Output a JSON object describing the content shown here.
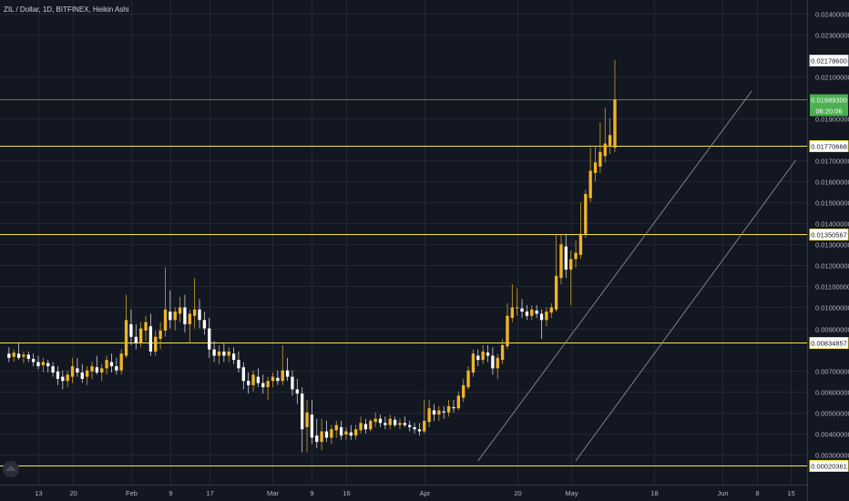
{
  "chart_data": {
    "type": "candlestick",
    "title": "ZIL / Dollar, 1D, BITFINEX, Heikin Ashi",
    "ylim": [
      0.002,
      0.0245
    ],
    "y_ticks": [
      "0.02400000",
      "0.02300000",
      "0.02100000",
      "0.01900000",
      "0.01700000",
      "0.01600000",
      "0.01500000",
      "0.01400000",
      "0.01300000",
      "0.01200000",
      "0.01100000",
      "0.01000000",
      "0.00900000",
      "0.00700000",
      "0.00600000",
      "0.00500000",
      "0.00400000",
      "0.00300000"
    ],
    "x_ticks": [
      {
        "label": "13",
        "day": 0
      },
      {
        "label": "20",
        "day": 7
      },
      {
        "label": "Feb",
        "day": 19
      },
      {
        "label": "9",
        "day": 27
      },
      {
        "label": "17",
        "day": 35
      },
      {
        "label": "Mar",
        "day": 48
      },
      {
        "label": "9",
        "day": 56
      },
      {
        "label": "16",
        "day": 63
      },
      {
        "label": "Apr",
        "day": 79
      },
      {
        "label": "20",
        "day": 98
      },
      {
        "label": "May",
        "day": 109
      },
      {
        "label": "18",
        "day": 126
      },
      {
        "label": "Jun",
        "day": 140
      },
      {
        "label": "8",
        "day": 147
      },
      {
        "label": "15",
        "day": 154
      }
    ],
    "horizontal_levels": [
      {
        "value": 0.00834857,
        "label": "0.00834857",
        "color": "#f5e642"
      },
      {
        "value": 0.01350567,
        "label": "0.01350567",
        "color": "#f5e642"
      },
      {
        "value": 0.01770668,
        "label": "0.01770668",
        "color": "#f5e642"
      },
      {
        "value": 0.00020361,
        "label": "0.00020361",
        "color": "#f5e642"
      }
    ],
    "current_price": {
      "value": 0.019893,
      "label": "0.01989300",
      "countdown": "06:20:06",
      "color": "#4caf50"
    },
    "high_marker": {
      "value": 0.021786,
      "label": "0.02178600"
    },
    "trend_lines": [
      {
        "from": {
          "day": 90,
          "price": 0.0027
        },
        "to": {
          "day": 146,
          "price": 0.0203
        }
      },
      {
        "from": {
          "day": 110,
          "price": 0.0027
        },
        "to": {
          "day": 155,
          "price": 0.017
        }
      }
    ],
    "colors": {
      "up": "#f0b429",
      "down": "#ffffff",
      "wick": "#c9a227",
      "level": "#f5e642",
      "trend": "#9598a1"
    },
    "candles": [
      {
        "day": -6,
        "o": 0.0078,
        "h": 0.0081,
        "l": 0.0074,
        "c": 0.0076
      },
      {
        "day": -5,
        "o": 0.00765,
        "h": 0.008,
        "l": 0.0074,
        "c": 0.00785
      },
      {
        "day": -4,
        "o": 0.0078,
        "h": 0.0083,
        "l": 0.0075,
        "c": 0.0076
      },
      {
        "day": -3,
        "o": 0.00765,
        "h": 0.0079,
        "l": 0.00735,
        "c": 0.00775
      },
      {
        "day": -2,
        "o": 0.00775,
        "h": 0.0079,
        "l": 0.0074,
        "c": 0.00755
      },
      {
        "day": -1,
        "o": 0.00755,
        "h": 0.0078,
        "l": 0.0072,
        "c": 0.0074
      },
      {
        "day": 0,
        "o": 0.0074,
        "h": 0.0077,
        "l": 0.00705,
        "c": 0.0072
      },
      {
        "day": 1,
        "o": 0.00725,
        "h": 0.0076,
        "l": 0.0069,
        "c": 0.0074
      },
      {
        "day": 2,
        "o": 0.00735,
        "h": 0.0075,
        "l": 0.0069,
        "c": 0.0072
      },
      {
        "day": 3,
        "o": 0.0072,
        "h": 0.0074,
        "l": 0.0067,
        "c": 0.0069
      },
      {
        "day": 4,
        "o": 0.00695,
        "h": 0.0072,
        "l": 0.0063,
        "c": 0.0066
      },
      {
        "day": 5,
        "o": 0.0067,
        "h": 0.007,
        "l": 0.0061,
        "c": 0.0065
      },
      {
        "day": 6,
        "o": 0.0065,
        "h": 0.007,
        "l": 0.0062,
        "c": 0.0068
      },
      {
        "day": 7,
        "o": 0.0067,
        "h": 0.0076,
        "l": 0.0064,
        "c": 0.0072
      },
      {
        "day": 8,
        "o": 0.0071,
        "h": 0.0076,
        "l": 0.0067,
        "c": 0.0069
      },
      {
        "day": 9,
        "o": 0.0069,
        "h": 0.0073,
        "l": 0.0064,
        "c": 0.0066
      },
      {
        "day": 10,
        "o": 0.0067,
        "h": 0.0072,
        "l": 0.0063,
        "c": 0.007
      },
      {
        "day": 11,
        "o": 0.00695,
        "h": 0.0074,
        "l": 0.0066,
        "c": 0.0072
      },
      {
        "day": 12,
        "o": 0.00715,
        "h": 0.0077,
        "l": 0.0068,
        "c": 0.0069
      },
      {
        "day": 13,
        "o": 0.0069,
        "h": 0.0073,
        "l": 0.0065,
        "c": 0.0071
      },
      {
        "day": 14,
        "o": 0.0071,
        "h": 0.0077,
        "l": 0.0068,
        "c": 0.0075
      },
      {
        "day": 15,
        "o": 0.0074,
        "h": 0.0078,
        "l": 0.0069,
        "c": 0.0072
      },
      {
        "day": 16,
        "o": 0.0072,
        "h": 0.0076,
        "l": 0.0068,
        "c": 0.007
      },
      {
        "day": 17,
        "o": 0.007,
        "h": 0.008,
        "l": 0.0068,
        "c": 0.0078
      },
      {
        "day": 18,
        "o": 0.0077,
        "h": 0.0106,
        "l": 0.0076,
        "c": 0.0094
      },
      {
        "day": 19,
        "o": 0.0092,
        "h": 0.0099,
        "l": 0.0082,
        "c": 0.0086
      },
      {
        "day": 20,
        "o": 0.0086,
        "h": 0.0092,
        "l": 0.008,
        "c": 0.0083
      },
      {
        "day": 21,
        "o": 0.0083,
        "h": 0.0093,
        "l": 0.0081,
        "c": 0.009
      },
      {
        "day": 22,
        "o": 0.0089,
        "h": 0.0096,
        "l": 0.0084,
        "c": 0.0093
      },
      {
        "day": 23,
        "o": 0.0091,
        "h": 0.0097,
        "l": 0.0077,
        "c": 0.0079
      },
      {
        "day": 24,
        "o": 0.0079,
        "h": 0.0089,
        "l": 0.0077,
        "c": 0.0086
      },
      {
        "day": 25,
        "o": 0.0085,
        "h": 0.0093,
        "l": 0.008,
        "c": 0.0089
      },
      {
        "day": 26,
        "o": 0.0089,
        "h": 0.0119,
        "l": 0.0086,
        "c": 0.0099
      },
      {
        "day": 27,
        "o": 0.0098,
        "h": 0.0108,
        "l": 0.009,
        "c": 0.0094
      },
      {
        "day": 28,
        "o": 0.0094,
        "h": 0.01,
        "l": 0.0089,
        "c": 0.0098
      },
      {
        "day": 29,
        "o": 0.0097,
        "h": 0.0105,
        "l": 0.0093,
        "c": 0.01
      },
      {
        "day": 30,
        "o": 0.01,
        "h": 0.0106,
        "l": 0.0088,
        "c": 0.0092
      },
      {
        "day": 31,
        "o": 0.0092,
        "h": 0.0099,
        "l": 0.0083,
        "c": 0.0097
      },
      {
        "day": 32,
        "o": 0.0096,
        "h": 0.0114,
        "l": 0.009,
        "c": 0.0099
      },
      {
        "day": 33,
        "o": 0.0099,
        "h": 0.0104,
        "l": 0.009,
        "c": 0.0094
      },
      {
        "day": 34,
        "o": 0.0094,
        "h": 0.0098,
        "l": 0.0087,
        "c": 0.009
      },
      {
        "day": 35,
        "o": 0.009,
        "h": 0.0095,
        "l": 0.0076,
        "c": 0.008
      },
      {
        "day": 36,
        "o": 0.008,
        "h": 0.0084,
        "l": 0.0074,
        "c": 0.0077
      },
      {
        "day": 37,
        "o": 0.0077,
        "h": 0.0082,
        "l": 0.0073,
        "c": 0.0079
      },
      {
        "day": 38,
        "o": 0.0079,
        "h": 0.0083,
        "l": 0.0074,
        "c": 0.0077
      },
      {
        "day": 39,
        "o": 0.0077,
        "h": 0.0081,
        "l": 0.0074,
        "c": 0.0079
      },
      {
        "day": 40,
        "o": 0.0078,
        "h": 0.0081,
        "l": 0.0073,
        "c": 0.0075
      },
      {
        "day": 41,
        "o": 0.0075,
        "h": 0.0079,
        "l": 0.0069,
        "c": 0.0071
      },
      {
        "day": 42,
        "o": 0.00715,
        "h": 0.0074,
        "l": 0.0061,
        "c": 0.0065
      },
      {
        "day": 43,
        "o": 0.0065,
        "h": 0.0069,
        "l": 0.0059,
        "c": 0.0063
      },
      {
        "day": 44,
        "o": 0.0063,
        "h": 0.007,
        "l": 0.006,
        "c": 0.0068
      },
      {
        "day": 45,
        "o": 0.0067,
        "h": 0.0071,
        "l": 0.0062,
        "c": 0.0064
      },
      {
        "day": 46,
        "o": 0.0064,
        "h": 0.0068,
        "l": 0.0059,
        "c": 0.0062
      },
      {
        "day": 47,
        "o": 0.0062,
        "h": 0.0067,
        "l": 0.0056,
        "c": 0.0065
      },
      {
        "day": 48,
        "o": 0.0065,
        "h": 0.0069,
        "l": 0.0062,
        "c": 0.0067
      },
      {
        "day": 49,
        "o": 0.00665,
        "h": 0.007,
        "l": 0.0063,
        "c": 0.0065
      },
      {
        "day": 50,
        "o": 0.0065,
        "h": 0.0082,
        "l": 0.0063,
        "c": 0.007
      },
      {
        "day": 51,
        "o": 0.007,
        "h": 0.0076,
        "l": 0.0065,
        "c": 0.0067
      },
      {
        "day": 52,
        "o": 0.0067,
        "h": 0.007,
        "l": 0.0058,
        "c": 0.0061
      },
      {
        "day": 53,
        "o": 0.0061,
        "h": 0.0066,
        "l": 0.0054,
        "c": 0.0059
      },
      {
        "day": 54,
        "o": 0.0059,
        "h": 0.0062,
        "l": 0.0031,
        "c": 0.0042
      },
      {
        "day": 55,
        "o": 0.0043,
        "h": 0.0056,
        "l": 0.0031,
        "c": 0.005
      },
      {
        "day": 56,
        "o": 0.0049,
        "h": 0.0056,
        "l": 0.0035,
        "c": 0.0038
      },
      {
        "day": 57,
        "o": 0.0039,
        "h": 0.0047,
        "l": 0.0033,
        "c": 0.0036
      },
      {
        "day": 58,
        "o": 0.0036,
        "h": 0.0047,
        "l": 0.0032,
        "c": 0.0041
      },
      {
        "day": 59,
        "o": 0.0041,
        "h": 0.0046,
        "l": 0.0036,
        "c": 0.0038
      },
      {
        "day": 60,
        "o": 0.0038,
        "h": 0.0044,
        "l": 0.0035,
        "c": 0.0042
      },
      {
        "day": 61,
        "o": 0.00415,
        "h": 0.0046,
        "l": 0.0038,
        "c": 0.0044
      },
      {
        "day": 62,
        "o": 0.0043,
        "h": 0.0046,
        "l": 0.0037,
        "c": 0.0039
      },
      {
        "day": 63,
        "o": 0.00395,
        "h": 0.0043,
        "l": 0.0037,
        "c": 0.0041
      },
      {
        "day": 64,
        "o": 0.00405,
        "h": 0.0044,
        "l": 0.0037,
        "c": 0.0039
      },
      {
        "day": 65,
        "o": 0.0039,
        "h": 0.0044,
        "l": 0.0037,
        "c": 0.0042
      },
      {
        "day": 66,
        "o": 0.00415,
        "h": 0.0048,
        "l": 0.004,
        "c": 0.0045
      },
      {
        "day": 67,
        "o": 0.00445,
        "h": 0.0047,
        "l": 0.004,
        "c": 0.0042
      },
      {
        "day": 68,
        "o": 0.0042,
        "h": 0.0047,
        "l": 0.0041,
        "c": 0.0046
      },
      {
        "day": 69,
        "o": 0.00455,
        "h": 0.005,
        "l": 0.0043,
        "c": 0.0047
      },
      {
        "day": 70,
        "o": 0.0047,
        "h": 0.0049,
        "l": 0.0043,
        "c": 0.0045
      },
      {
        "day": 71,
        "o": 0.0045,
        "h": 0.0048,
        "l": 0.0042,
        "c": 0.0044
      },
      {
        "day": 72,
        "o": 0.0044,
        "h": 0.0049,
        "l": 0.0042,
        "c": 0.0047
      },
      {
        "day": 73,
        "o": 0.00465,
        "h": 0.0048,
        "l": 0.0043,
        "c": 0.0044
      },
      {
        "day": 74,
        "o": 0.0044,
        "h": 0.0047,
        "l": 0.0042,
        "c": 0.0045
      },
      {
        "day": 75,
        "o": 0.0045,
        "h": 0.0048,
        "l": 0.0043,
        "c": 0.0044
      },
      {
        "day": 76,
        "o": 0.0044,
        "h": 0.0046,
        "l": 0.0041,
        "c": 0.0043
      },
      {
        "day": 77,
        "o": 0.0043,
        "h": 0.0045,
        "l": 0.004,
        "c": 0.0042
      },
      {
        "day": 78,
        "o": 0.0042,
        "h": 0.0045,
        "l": 0.0039,
        "c": 0.0041
      },
      {
        "day": 79,
        "o": 0.0041,
        "h": 0.0056,
        "l": 0.004,
        "c": 0.0046
      },
      {
        "day": 80,
        "o": 0.00455,
        "h": 0.0056,
        "l": 0.0043,
        "c": 0.0052
      },
      {
        "day": 81,
        "o": 0.0051,
        "h": 0.0054,
        "l": 0.0046,
        "c": 0.0049
      },
      {
        "day": 82,
        "o": 0.0049,
        "h": 0.0053,
        "l": 0.0046,
        "c": 0.0051
      },
      {
        "day": 83,
        "o": 0.00505,
        "h": 0.0053,
        "l": 0.0047,
        "c": 0.005
      },
      {
        "day": 84,
        "o": 0.005,
        "h": 0.0056,
        "l": 0.0048,
        "c": 0.0053
      },
      {
        "day": 85,
        "o": 0.00525,
        "h": 0.0056,
        "l": 0.005,
        "c": 0.0052
      },
      {
        "day": 86,
        "o": 0.0052,
        "h": 0.006,
        "l": 0.0051,
        "c": 0.0058
      },
      {
        "day": 87,
        "o": 0.0057,
        "h": 0.0066,
        "l": 0.0055,
        "c": 0.0063
      },
      {
        "day": 88,
        "o": 0.0062,
        "h": 0.0072,
        "l": 0.0061,
        "c": 0.007
      },
      {
        "day": 89,
        "o": 0.0069,
        "h": 0.008,
        "l": 0.0067,
        "c": 0.0078
      },
      {
        "day": 90,
        "o": 0.0077,
        "h": 0.008,
        "l": 0.0072,
        "c": 0.0075
      },
      {
        "day": 91,
        "o": 0.0075,
        "h": 0.0082,
        "l": 0.0073,
        "c": 0.0079
      },
      {
        "day": 92,
        "o": 0.00785,
        "h": 0.0082,
        "l": 0.0074,
        "c": 0.0077
      },
      {
        "day": 93,
        "o": 0.0077,
        "h": 0.0081,
        "l": 0.0068,
        "c": 0.0071
      },
      {
        "day": 94,
        "o": 0.0071,
        "h": 0.0078,
        "l": 0.0066,
        "c": 0.0076
      },
      {
        "day": 95,
        "o": 0.0075,
        "h": 0.0085,
        "l": 0.0073,
        "c": 0.0082
      },
      {
        "day": 96,
        "o": 0.00815,
        "h": 0.0102,
        "l": 0.008,
        "c": 0.0096
      },
      {
        "day": 97,
        "o": 0.0095,
        "h": 0.0111,
        "l": 0.0093,
        "c": 0.01
      },
      {
        "day": 98,
        "o": 0.01,
        "h": 0.0109,
        "l": 0.0096,
        "c": 0.01
      },
      {
        "day": 99,
        "o": 0.00995,
        "h": 0.0104,
        "l": 0.0095,
        "c": 0.0098
      },
      {
        "day": 100,
        "o": 0.0098,
        "h": 0.0101,
        "l": 0.0094,
        "c": 0.0096
      },
      {
        "day": 101,
        "o": 0.0096,
        "h": 0.0101,
        "l": 0.0094,
        "c": 0.0099
      },
      {
        "day": 102,
        "o": 0.00985,
        "h": 0.0101,
        "l": 0.0095,
        "c": 0.0097
      },
      {
        "day": 103,
        "o": 0.0097,
        "h": 0.0099,
        "l": 0.0085,
        "c": 0.0094
      },
      {
        "day": 104,
        "o": 0.0094,
        "h": 0.01,
        "l": 0.0091,
        "c": 0.0098
      },
      {
        "day": 105,
        "o": 0.00975,
        "h": 0.0102,
        "l": 0.0095,
        "c": 0.01
      },
      {
        "day": 106,
        "o": 0.0099,
        "h": 0.0135,
        "l": 0.0098,
        "c": 0.0115
      },
      {
        "day": 107,
        "o": 0.0114,
        "h": 0.0135,
        "l": 0.0111,
        "c": 0.013
      },
      {
        "day": 108,
        "o": 0.0129,
        "h": 0.0135,
        "l": 0.0114,
        "c": 0.0118
      },
      {
        "day": 109,
        "o": 0.0118,
        "h": 0.0127,
        "l": 0.0101,
        "c": 0.0123
      },
      {
        "day": 110,
        "o": 0.0123,
        "h": 0.0132,
        "l": 0.0119,
        "c": 0.0126
      },
      {
        "day": 111,
        "o": 0.0125,
        "h": 0.015,
        "l": 0.0123,
        "c": 0.0135
      },
      {
        "day": 112,
        "o": 0.0135,
        "h": 0.0156,
        "l": 0.0133,
        "c": 0.0154
      },
      {
        "day": 113,
        "o": 0.0152,
        "h": 0.0176,
        "l": 0.015,
        "c": 0.0165
      },
      {
        "day": 114,
        "o": 0.0164,
        "h": 0.0177,
        "l": 0.016,
        "c": 0.0169
      },
      {
        "day": 115,
        "o": 0.0167,
        "h": 0.0188,
        "l": 0.0164,
        "c": 0.0174
      },
      {
        "day": 116,
        "o": 0.0172,
        "h": 0.0195,
        "l": 0.0169,
        "c": 0.0178
      },
      {
        "day": 117,
        "o": 0.0177,
        "h": 0.019,
        "l": 0.0173,
        "c": 0.0182
      },
      {
        "day": 118,
        "o": 0.0176,
        "h": 0.02178,
        "l": 0.0174,
        "c": 0.01989
      }
    ]
  }
}
